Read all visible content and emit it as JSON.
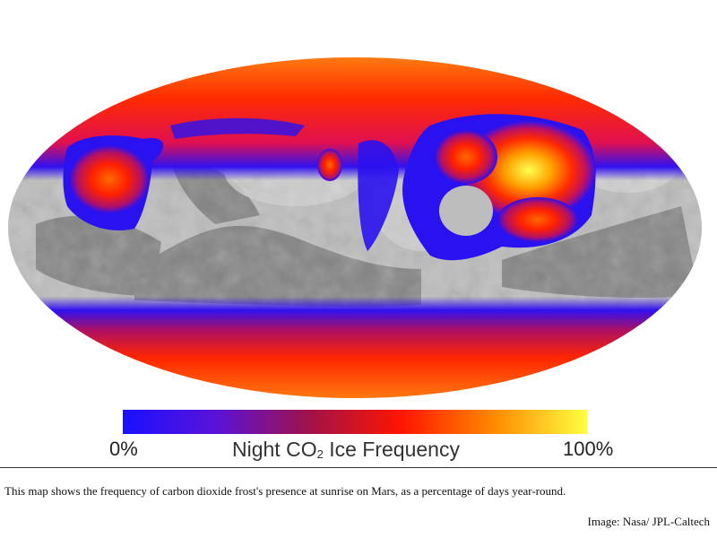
{
  "map": {
    "projection": "mollweide",
    "body": "Mars",
    "colors": {
      "surface_light": "#c4c4c4",
      "surface_dark": "#6e6e6e",
      "blue": "#1a10ff",
      "purple": "#6a1ad0",
      "red": "#ff2a00",
      "orange": "#ff8a00",
      "yellow": "#ffff40"
    }
  },
  "colorbar": {
    "min_label": "0%",
    "max_label": "100%",
    "title_main": "Night CO",
    "title_sub": "2",
    "title_tail": " Ice Frequency",
    "stops": [
      "#1a10ff",
      "#5a12d8",
      "#a0124a",
      "#ff1500",
      "#ff8a00",
      "#ffff40"
    ]
  },
  "caption": "This map shows the frequency of carbon dioxide frost's presence at sunrise on Mars, as a percentage of days year-round.",
  "credit": "Image: Nasa/ JPL-Caltech"
}
